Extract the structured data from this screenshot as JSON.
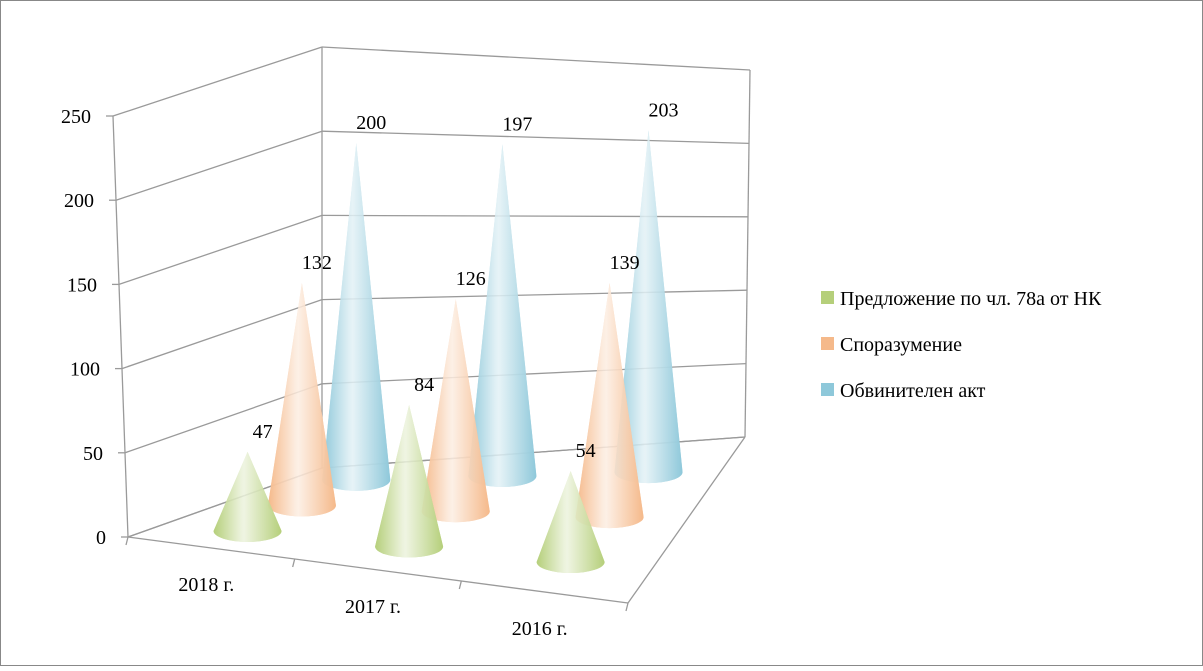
{
  "chart_data": {
    "type": "cone3d",
    "categories": [
      "2018 г.",
      "2017 г.",
      "2016 г."
    ],
    "series": [
      {
        "name": "Предложение по чл. 78а от НК",
        "color": "#b5cf7a",
        "values": [
          47,
          84,
          54
        ]
      },
      {
        "name": "Споразумение",
        "color": "#f5b98a",
        "values": [
          132,
          126,
          139
        ]
      },
      {
        "name": "Обвинителен акт",
        "color": "#8ec8da",
        "values": [
          200,
          197,
          203
        ]
      }
    ],
    "ylim": [
      0,
      250
    ],
    "yticks": [
      0,
      50,
      100,
      150,
      200,
      250
    ],
    "grid": true,
    "legend": "right"
  }
}
